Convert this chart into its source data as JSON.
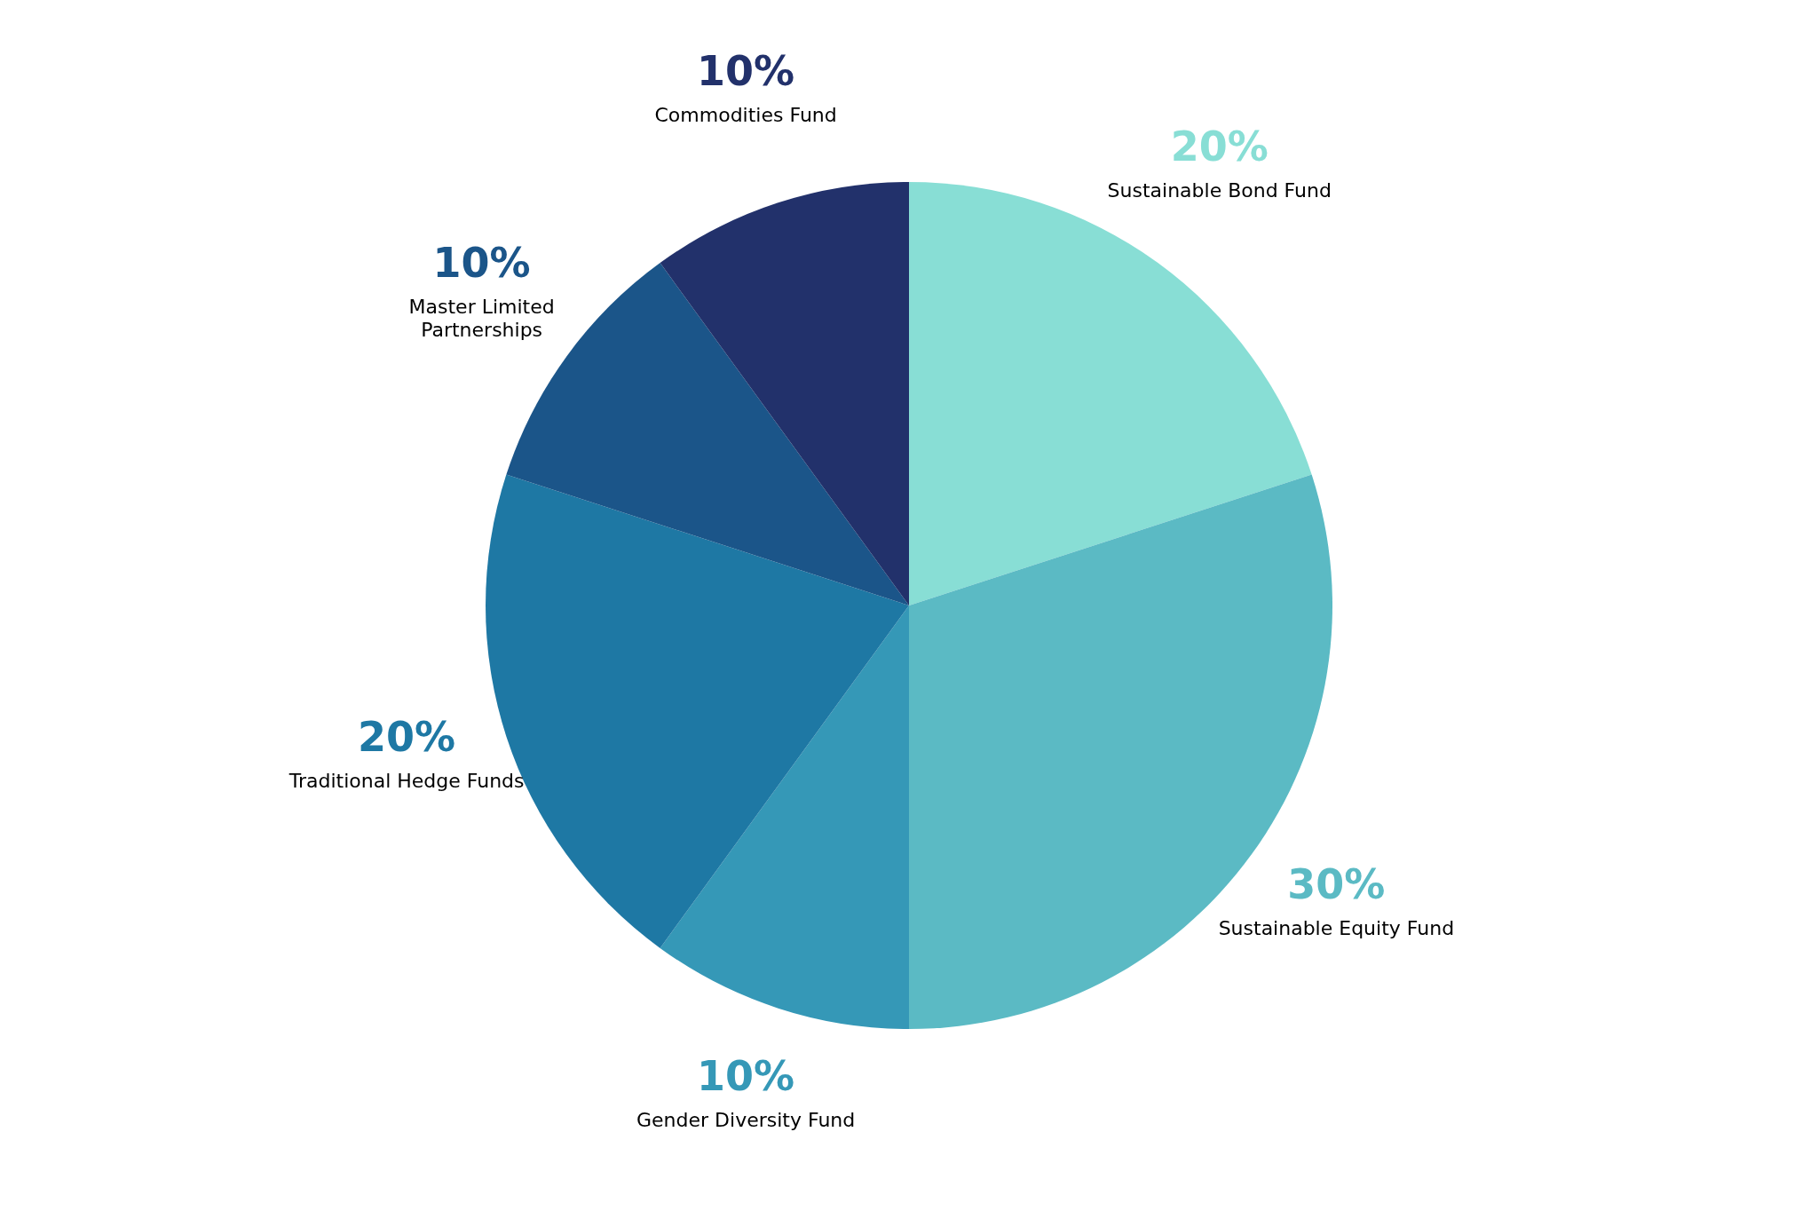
{
  "chart_data": {
    "type": "pie",
    "categories": [
      "Sustainable Bond Fund",
      "Sustainable Equity Fund",
      "Gender Diversity Fund",
      "Traditional Hedge Funds",
      "Master Limited Partnerships",
      "Commodities Fund"
    ],
    "values": [
      20,
      30,
      10,
      20,
      10,
      10
    ],
    "value_labels": [
      "20%",
      "30%",
      "10%",
      "20%",
      "10%",
      "10%"
    ],
    "colors": [
      "#88ded5",
      "#5bbac4",
      "#3598b7",
      "#1e78a4",
      "#1b5589",
      "#22316b"
    ]
  }
}
